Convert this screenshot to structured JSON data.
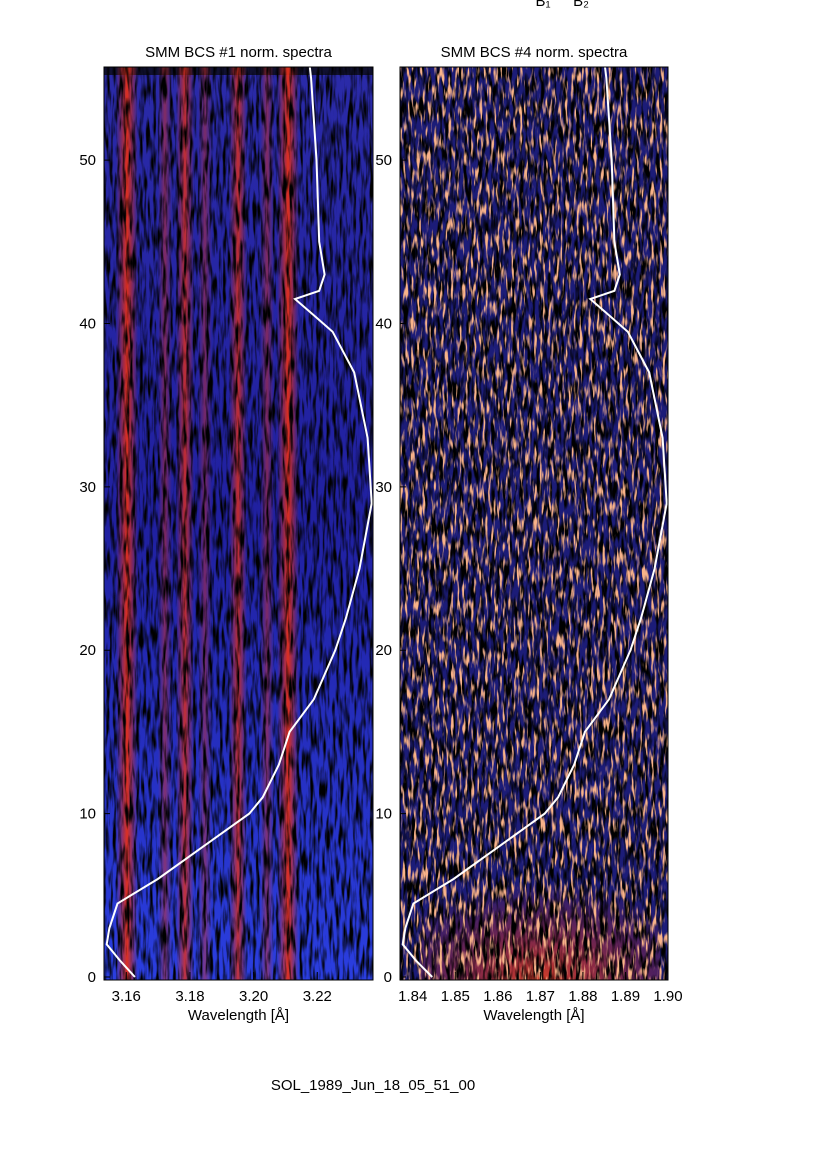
{
  "chart_data": [
    {
      "type": "heatmap",
      "title": "SMM BCS #1 norm. spectra",
      "xlabel": "Wavelength [Å]",
      "xlim": [
        3.153,
        3.2375
      ],
      "xticks": [
        3.16,
        3.18,
        {
          "value": 3.2,
          "label": "3.20"
        },
        3.22
      ],
      "ylim": [
        0,
        55.7
      ],
      "yticks": [
        0,
        10,
        20,
        30,
        40,
        50
      ],
      "curve": {
        "time": [
          0,
          1,
          2,
          3,
          4.5,
          6,
          8,
          10,
          11,
          13,
          15,
          17,
          20,
          22,
          25,
          29,
          33,
          37,
          39.5,
          40.5,
          41.5,
          42,
          43,
          45,
          50,
          55,
          55.7
        ],
        "intensity": [
          0.115,
          0.06,
          0.01,
          0.02,
          0.05,
          0.2,
          0.37,
          0.54,
          0.59,
          0.65,
          0.69,
          0.78,
          0.86,
          0.9,
          0.95,
          0.995,
          0.98,
          0.93,
          0.85,
          0.78,
          0.71,
          0.8,
          0.82,
          0.8,
          0.79,
          0.77,
          0.765
        ]
      }
    },
    {
      "type": "heatmap",
      "title": "SMM BCS #4 norm. spectra",
      "xlabel": "Wavelength [Å]",
      "xlim": [
        1.837,
        1.9
      ],
      "xticks": [
        1.84,
        1.85,
        1.86,
        1.87,
        1.88,
        1.89,
        {
          "value": 1.9,
          "label": "1.90"
        }
      ],
      "ylim": [
        0,
        55.7
      ],
      "yticks": [
        0,
        10,
        20,
        30,
        40,
        50
      ],
      "curve": {
        "time": [
          0,
          1,
          2,
          3,
          4.5,
          6,
          8,
          10,
          11,
          13,
          15,
          17,
          20,
          22,
          25,
          29,
          33,
          37,
          39.5,
          40.5,
          41.5,
          42,
          43,
          45,
          50,
          55,
          55.7
        ],
        "intensity": [
          0.12,
          0.06,
          0.01,
          0.02,
          0.05,
          0.2,
          0.37,
          0.54,
          0.59,
          0.65,
          0.69,
          0.78,
          0.86,
          0.9,
          0.95,
          0.995,
          0.98,
          0.93,
          0.85,
          0.78,
          0.71,
          0.8,
          0.82,
          0.8,
          0.79,
          0.77,
          0.765
        ]
      }
    }
  ],
  "annotations": [
    "B₁",
    "B₂"
  ],
  "footer": "SOL_1989_Jun_18_05_51_00"
}
